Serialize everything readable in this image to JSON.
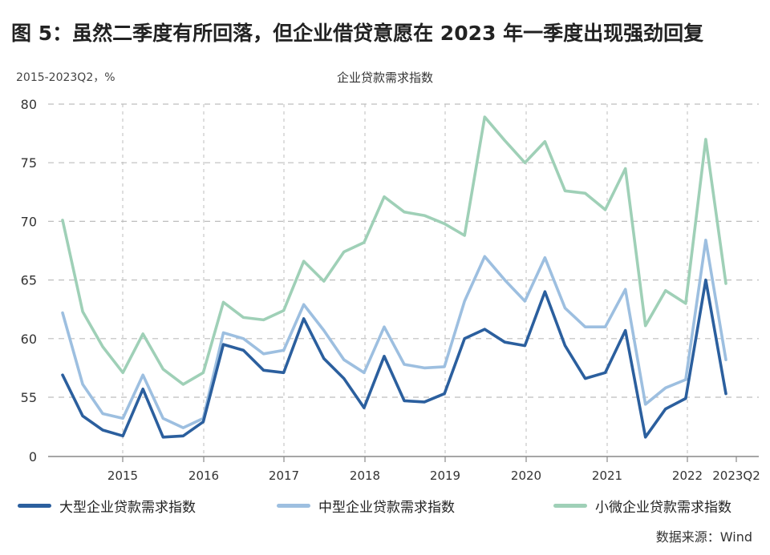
{
  "title": "图 5：虽然二季度有所回落，但企业借贷意愿在 2023 年一季度出现强劲回复",
  "subtitle_left": "2015-2023Q2，%",
  "chart_title": "企业贷款需求指数",
  "source": "数据来源：Wind",
  "colors": {
    "large": "#2b5f9e",
    "medium": "#9dbfe0",
    "small": "#9fd0b7",
    "grid": "#bdbdbd",
    "axis": "#888888"
  },
  "chart_data": {
    "type": "line",
    "ylim": [
      0,
      80
    ],
    "yticks": [
      0,
      55,
      60,
      65,
      70,
      75,
      80
    ],
    "xtick_labels": [
      "2015",
      "2016",
      "2017",
      "2018",
      "2019",
      "2020",
      "2021",
      "2022",
      "2023Q2"
    ],
    "grid": true,
    "legend_position": "bottom",
    "series": [
      {
        "name": "大型企业贷款需求指数",
        "key": "large",
        "values": [
          56.9,
          53.4,
          52.2,
          51.7,
          55.7,
          51.6,
          51.7,
          52.9,
          59.5,
          59.0,
          57.3,
          57.1,
          61.7,
          58.3,
          56.6,
          54.1,
          58.5,
          54.7,
          54.6,
          55.3,
          60.0,
          60.8,
          59.7,
          59.4,
          64.0,
          59.4,
          56.6,
          57.1,
          60.7,
          51.6,
          54.0,
          54.9,
          65.0,
          55.3
        ]
      },
      {
        "name": "中型企业贷款需求指数",
        "key": "medium",
        "values": [
          62.2,
          56.1,
          53.6,
          53.2,
          56.9,
          53.2,
          52.4,
          53.2,
          60.5,
          60.0,
          58.7,
          59.0,
          62.9,
          60.7,
          58.2,
          57.1,
          61.0,
          57.8,
          57.5,
          57.6,
          63.2,
          67.0,
          65.0,
          63.2,
          66.9,
          62.6,
          61.0,
          61.0,
          64.2,
          54.4,
          55.8,
          56.5,
          68.4,
          58.2
        ]
      },
      {
        "name": "小微企业贷款需求指数",
        "key": "small",
        "values": [
          70.1,
          62.3,
          59.3,
          57.1,
          60.4,
          57.4,
          56.1,
          57.1,
          63.1,
          61.8,
          61.6,
          62.4,
          66.6,
          64.9,
          67.4,
          68.2,
          72.1,
          70.8,
          70.5,
          69.8,
          68.8,
          78.9,
          76.9,
          75.0,
          76.8,
          72.6,
          72.4,
          71.0,
          74.5,
          61.1,
          64.1,
          63.0,
          77.0,
          64.7
        ]
      }
    ]
  }
}
